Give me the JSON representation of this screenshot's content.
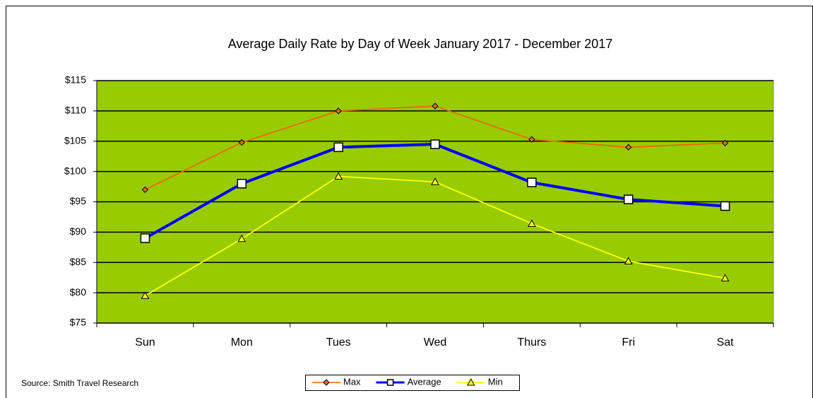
{
  "chart_data": {
    "type": "line",
    "title": "Average Daily Rate by Day of Week January 2017 - December 2017",
    "source": "Source: Smith Travel Research",
    "categories": [
      "Sun",
      "Mon",
      "Tues",
      "Wed",
      "Thurs",
      "Fri",
      "Sat"
    ],
    "series": [
      {
        "name": "Max",
        "color": "#e36c0a",
        "marker": "diamond",
        "values": [
          97,
          104.8,
          110,
          110.8,
          105.3,
          104,
          104.7
        ]
      },
      {
        "name": "Average",
        "color": "#0000ff",
        "marker": "square",
        "values": [
          89,
          98,
          104,
          104.5,
          98.2,
          95.4,
          94.3
        ]
      },
      {
        "name": "Min",
        "color": "#ffff00",
        "marker": "triangle",
        "values": [
          79.5,
          88.9,
          99.2,
          98.3,
          91.4,
          85.2,
          82.4
        ]
      }
    ],
    "ylim": [
      75,
      115
    ],
    "yticks": [
      {
        "value": 75,
        "label": "$75"
      },
      {
        "value": 80,
        "label": "$80"
      },
      {
        "value": 85,
        "label": "$85"
      },
      {
        "value": 90,
        "label": "$90"
      },
      {
        "value": 95,
        "label": "$95"
      },
      {
        "value": 100,
        "label": "$100"
      },
      {
        "value": 105,
        "label": "$105"
      },
      {
        "value": 110,
        "label": "$110"
      },
      {
        "value": 115,
        "label": "$115"
      }
    ],
    "grid": true,
    "plot_background": "#99cc00",
    "legend": "bottom"
  }
}
